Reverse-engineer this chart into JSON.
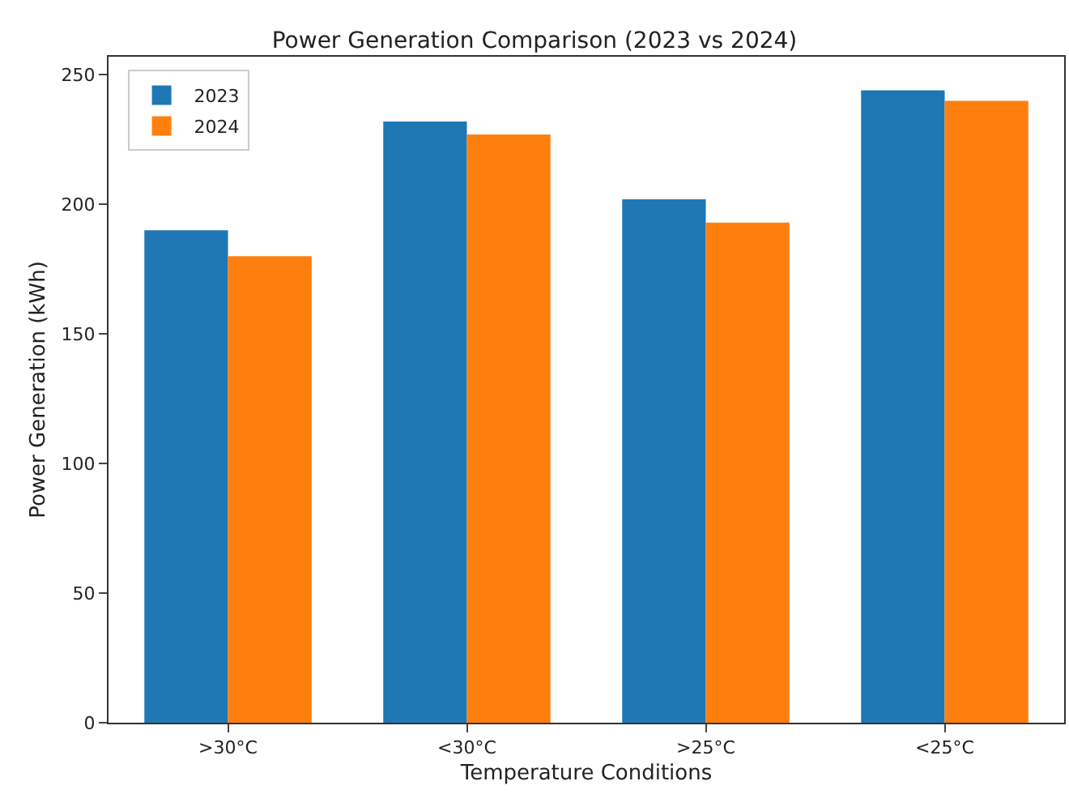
{
  "chart_data": {
    "type": "bar",
    "title": "Power Generation Comparison (2023 vs 2024)",
    "xlabel": "Temperature Conditions",
    "ylabel": "Power Generation (kWh)",
    "categories": [
      ">30°C",
      "<30°C",
      ">25°C",
      "<25°C"
    ],
    "series": [
      {
        "name": "2023",
        "color": "#1f77b4",
        "values": [
          190,
          232,
          202,
          244
        ]
      },
      {
        "name": "2024",
        "color": "#ff7f0e",
        "values": [
          180,
          227,
          193,
          240
        ]
      }
    ],
    "ylim": [
      0,
      257
    ],
    "yticks": [
      0,
      50,
      100,
      150,
      200,
      250
    ],
    "grid": false,
    "legend": "top left"
  }
}
